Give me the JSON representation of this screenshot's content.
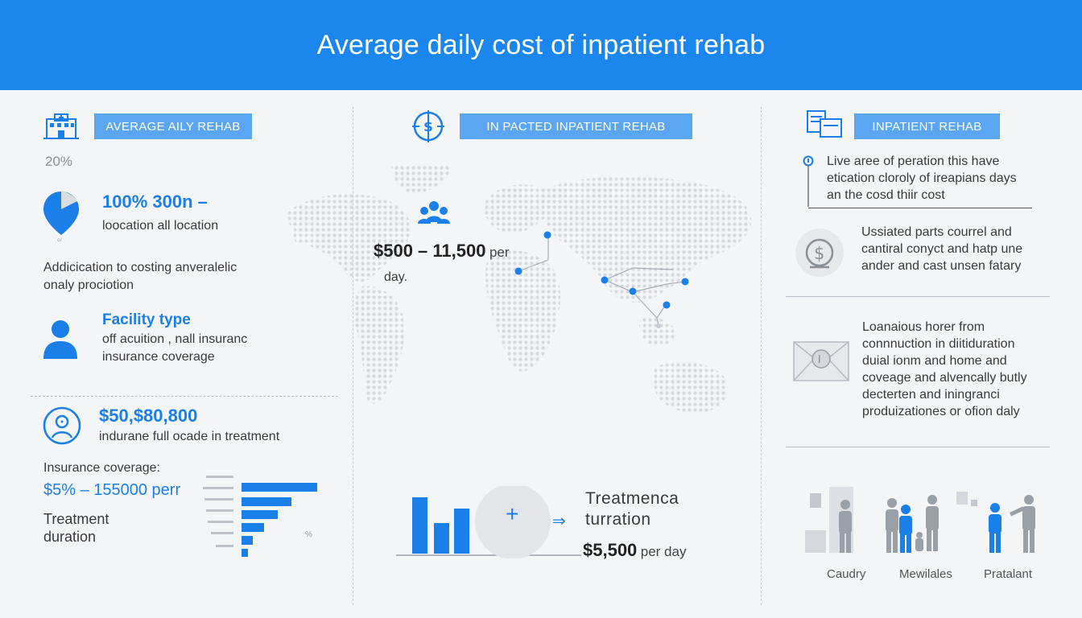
{
  "header": {
    "title": "Average daily cost of inpatient rehab"
  },
  "left": {
    "pill": "AVERAGE AILY REHAB",
    "percent": "20%",
    "stat1_value": "100% 300n –",
    "stat1_label": "loocation all location",
    "note_line1": "Addicication to costing anveralelic",
    "note_line2": "onaly prociotion",
    "facility_title": "Facility type",
    "facility_line1": "off acuition , nall insuranc",
    "facility_line2": "insurance coverage",
    "range_value": "$50,$80,800",
    "range_label": "indurane full ocade in treatment",
    "insurance_label": "Insurance coverage:",
    "insurance_value": "$5% – 155000 perr",
    "treatment_line1": "Treatment",
    "treatment_line2": "duration",
    "mini_pct": "%"
  },
  "middle": {
    "pill": "IN PACTED INPATIENT REHAB",
    "cost_value": "$500 – 11,500",
    "cost_per": "per",
    "cost_day": "day.",
    "plus": "+",
    "arrow": "⇒",
    "treat_line1": "Treatmenca",
    "treat_line2": "turration",
    "treat_cost": "$5,500",
    "treat_per": "per day"
  },
  "right": {
    "pill": "INPATIENT REHAB",
    "callout_line1": "Live aree of peration this have",
    "callout_line2": "etication cloroly of ireapians days",
    "callout_line3": "an the cosd thiir cost",
    "block1_line1": "Ussiated parts courrel and",
    "block1_line2": "cantiral conyct and hatp une",
    "block1_line3": "ander and cast unsen fatary",
    "block2_line1": "Loanaious horer from",
    "block2_line2": "connnuction in diitiduration",
    "block2_line3": "duial ionm and home and",
    "block2_line4": "coveage and alvencally butly",
    "block2_line5": "decterten and iningranci",
    "block2_line6": "produizationes or ofion daly",
    "people_label1": "Caudry",
    "people_label2": "Mewilales",
    "people_label3": "Pratalant"
  },
  "colors": {
    "header": "#1a86ee",
    "accent": "#1a7fe8",
    "pill": "#5aa6f0",
    "grey": "#9aa0a8"
  },
  "icons": [
    "hospital-icon",
    "location-pin-icon",
    "person-icon",
    "face-circle-icon",
    "dollar-shield-icon",
    "people-group-icon",
    "documents-icon",
    "dollar-coin-icon",
    "envelope-icon"
  ]
}
